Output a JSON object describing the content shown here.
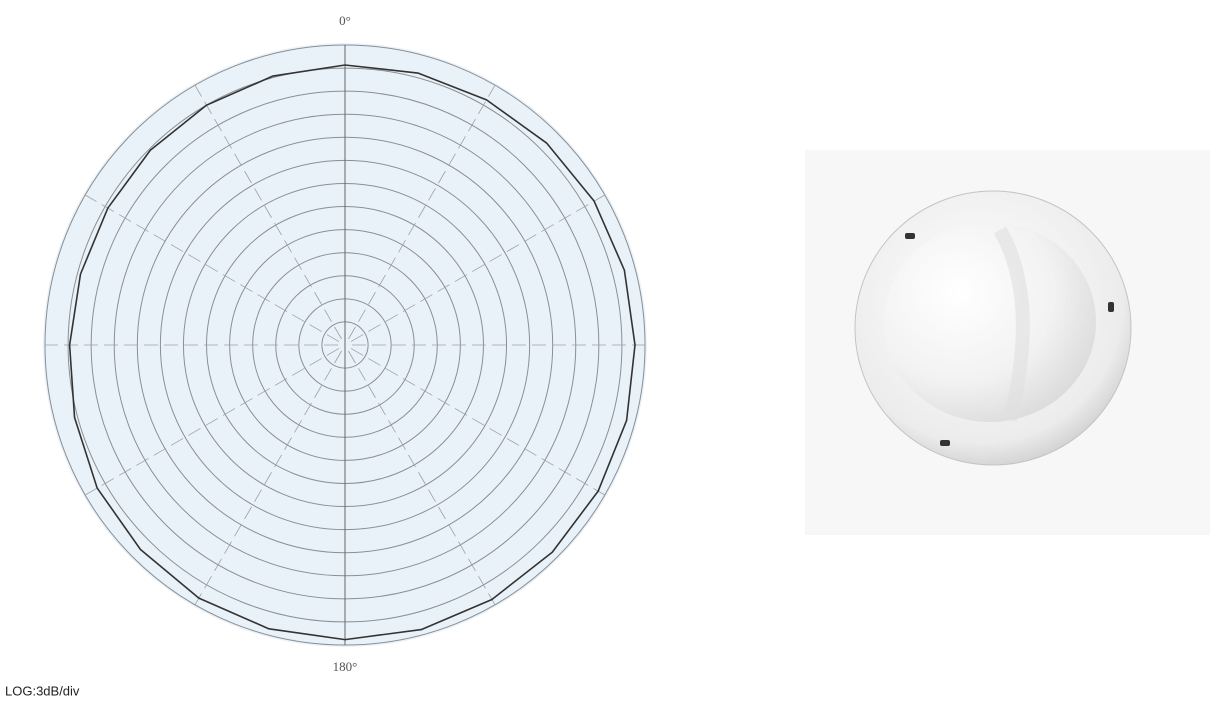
{
  "chart_data": {
    "type": "polar",
    "annotation": "LOG:3dB/div",
    "thetaticks": [
      {
        "value": 0,
        "label": "0°"
      },
      {
        "value": 180,
        "label": "180°"
      }
    ],
    "theta": [
      0,
      15,
      30,
      45,
      60,
      75,
      90,
      105,
      120,
      135,
      150,
      165,
      180,
      195,
      210,
      225,
      240,
      255,
      270,
      285,
      300,
      315,
      330,
      345
    ],
    "values": [
      -2.6,
      -2.4,
      -2.2,
      -1.9,
      -1.6,
      -1.4,
      -1.3,
      -1.1,
      -1.0,
      -0.9,
      -0.8,
      -0.7,
      -0.7,
      -0.8,
      -1.0,
      -1.4,
      -1.8,
      -2.6,
      -3.2,
      -3.4,
      -3.4,
      -3.2,
      -3.0,
      -2.8
    ],
    "color": "#333333",
    "rlim": [
      -39,
      0
    ],
    "rticks": [
      -36,
      -33,
      -30,
      -27,
      -24,
      -21,
      -18,
      -15,
      -12,
      -9,
      -6,
      -3,
      0
    ],
    "grid": true
  }
}
